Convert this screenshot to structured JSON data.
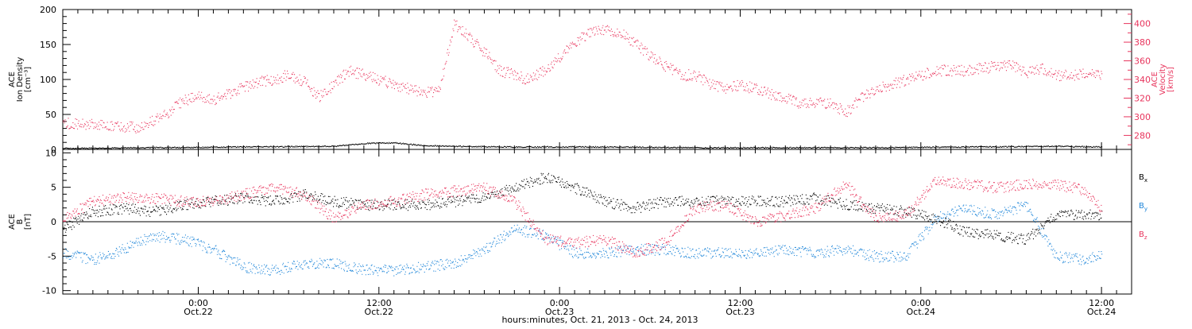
{
  "chart_data": [
    {
      "type": "scatter",
      "panel": "top",
      "ylabel_lines": [
        "ACE",
        "Ion Density",
        "[cm⁻³]"
      ],
      "ylabel_right_lines": [
        "ACE",
        "Velocity",
        "[km/s]"
      ],
      "ylim": [
        0,
        200
      ],
      "ylim_right": [
        265,
        415
      ],
      "y_ticks": [
        {
          "v": 0,
          "label": "0"
        },
        {
          "v": 50,
          "label": "50"
        },
        {
          "v": 100,
          "label": "100"
        },
        {
          "v": 150,
          "label": "150"
        },
        {
          "v": 200,
          "label": "200"
        }
      ],
      "y_right_ticks": [
        {
          "v": 280,
          "label": "280"
        },
        {
          "v": 300,
          "label": "300"
        },
        {
          "v": 320,
          "label": "320"
        },
        {
          "v": 340,
          "label": "340"
        },
        {
          "v": 360,
          "label": "360"
        },
        {
          "v": 380,
          "label": "380"
        },
        {
          "v": 400,
          "label": "400"
        }
      ],
      "series": [
        {
          "key": "density",
          "axis": "left",
          "color": "#000000",
          "x": [
            0,
            6,
            12,
            18,
            20,
            22,
            24,
            26,
            30,
            36,
            42,
            48,
            54,
            60,
            66,
            69
          ],
          "values": [
            2,
            3,
            4,
            5,
            9,
            10,
            6,
            5,
            4,
            4,
            3,
            3,
            3,
            4,
            5,
            4
          ]
        },
        {
          "key": "velocity",
          "axis": "right",
          "color": "#e8355d",
          "x": [
            0,
            2,
            4,
            5,
            6,
            7,
            8,
            9,
            10,
            11,
            12,
            13,
            14,
            15,
            16,
            17,
            18,
            19,
            20,
            21,
            22,
            23,
            24,
            25,
            26,
            27,
            28,
            29,
            30,
            31,
            32,
            33,
            34,
            35,
            36,
            37,
            38,
            39,
            40,
            41,
            42,
            43,
            44,
            45,
            46,
            47,
            48,
            49,
            50,
            51,
            52,
            53,
            54,
            55,
            56,
            57,
            58,
            59,
            60,
            61,
            62,
            63,
            64,
            65,
            66,
            67,
            68,
            69
          ],
          "values": [
            294,
            292,
            290,
            288,
            296,
            305,
            318,
            322,
            318,
            325,
            332,
            338,
            340,
            346,
            338,
            322,
            335,
            350,
            345,
            340,
            335,
            330,
            325,
            330,
            400,
            385,
            370,
            350,
            345,
            340,
            350,
            365,
            380,
            390,
            395,
            390,
            380,
            365,
            355,
            345,
            345,
            335,
            330,
            335,
            330,
            325,
            320,
            315,
            315,
            315,
            305,
            320,
            330,
            335,
            340,
            345,
            350,
            350,
            350,
            352,
            355,
            355,
            348,
            352,
            345,
            345,
            348,
            345
          ]
        }
      ]
    },
    {
      "type": "scatter",
      "panel": "bottom",
      "ylabel_lines": [
        "ACE",
        "B",
        "[nT]"
      ],
      "ylim": [
        -10.5,
        10.5
      ],
      "y_ticks": [
        {
          "v": -10,
          "label": "-10"
        },
        {
          "v": -5,
          "label": "-5"
        },
        {
          "v": 0,
          "label": "0"
        },
        {
          "v": 5,
          "label": "5"
        },
        {
          "v": 10,
          "label": "10"
        }
      ],
      "zero_line": true,
      "series": [
        {
          "key": "bx",
          "name": "Bx",
          "name_base": "B",
          "name_sub": "x",
          "color": "#000000",
          "x": [
            0,
            2,
            4,
            6,
            8,
            10,
            12,
            14,
            16,
            18,
            20,
            22,
            24,
            26,
            28,
            30,
            32,
            34,
            36,
            38,
            40,
            42,
            44,
            46,
            48,
            50,
            52,
            54,
            56,
            58,
            60,
            62,
            64,
            66,
            68,
            69
          ],
          "values": [
            -1,
            1.5,
            2.0,
            1.5,
            2.5,
            3.0,
            3.5,
            3.0,
            4.0,
            3.0,
            2.5,
            2.5,
            2.5,
            3.0,
            3.5,
            5.0,
            6.5,
            5.0,
            3.0,
            2.0,
            3.0,
            3.0,
            3.0,
            3.0,
            3.0,
            3.5,
            2.5,
            2.0,
            1.5,
            0.5,
            -1.5,
            -2.0,
            -2.5,
            1.0,
            1.0,
            1.0
          ]
        },
        {
          "key": "by",
          "name": "By",
          "name_base": "B",
          "name_sub": "y",
          "color": "#1f86d9",
          "x": [
            0,
            2,
            4,
            6,
            8,
            10,
            12,
            14,
            16,
            18,
            20,
            22,
            24,
            26,
            28,
            30,
            32,
            34,
            36,
            38,
            40,
            42,
            44,
            46,
            48,
            50,
            52,
            54,
            56,
            58,
            60,
            62,
            64,
            66,
            68,
            69
          ],
          "values": [
            -4.5,
            -5.5,
            -4.0,
            -2.0,
            -2.5,
            -4.0,
            -6.5,
            -7.0,
            -6.0,
            -6.0,
            -7.0,
            -7.0,
            -6.5,
            -6.0,
            -4.0,
            -1.0,
            -2.0,
            -4.5,
            -4.5,
            -4.0,
            -4.0,
            -4.5,
            -4.5,
            -4.5,
            -4.0,
            -4.5,
            -4.0,
            -5.0,
            -5.0,
            0.5,
            2.0,
            1.0,
            2.5,
            -5.0,
            -5.5,
            -4.5
          ]
        },
        {
          "key": "bz",
          "name": "Bz",
          "name_base": "B",
          "name_sub": "z",
          "color": "#e8355d",
          "x": [
            0,
            2,
            4,
            6,
            8,
            10,
            12,
            14,
            16,
            18,
            20,
            22,
            24,
            26,
            28,
            30,
            32,
            34,
            36,
            38,
            40,
            42,
            44,
            46,
            48,
            50,
            52,
            54,
            56,
            58,
            60,
            62,
            64,
            66,
            68,
            69
          ],
          "values": [
            0.5,
            3.0,
            3.5,
            3.5,
            3.0,
            3.0,
            4.0,
            5.0,
            4.0,
            0.5,
            2.5,
            3.0,
            4.0,
            4.5,
            5.0,
            3.0,
            -2.5,
            -3.0,
            -2.5,
            -4.5,
            -3.0,
            2.0,
            2.5,
            0,
            1.0,
            2.0,
            5.5,
            0.5,
            1.0,
            6.0,
            5.5,
            5.0,
            5.5,
            5.5,
            4.5,
            2.0
          ]
        }
      ]
    }
  ],
  "x_axis": {
    "xlim": [
      0,
      71
    ],
    "tick_step_hours": 1,
    "major_labels": [
      {
        "x": 9,
        "time": "0:00",
        "date": "Oct.22"
      },
      {
        "x": 21,
        "time": "12:00",
        "date": "Oct.22"
      },
      {
        "x": 33,
        "time": "0:00",
        "date": "Oct.23"
      },
      {
        "x": 45,
        "time": "12:00",
        "date": "Oct.23"
      },
      {
        "x": 57,
        "time": "0:00",
        "date": "Oct.24"
      },
      {
        "x": 69,
        "time": "12:00",
        "date": "Oct.24"
      }
    ],
    "caption": "hours:minutes, Oct. 21, 2013 - Oct. 24, 2013"
  }
}
